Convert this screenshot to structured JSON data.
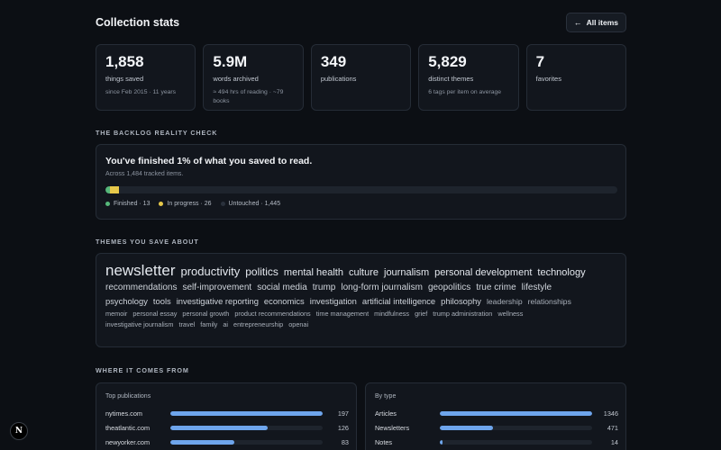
{
  "header": {
    "title": "Collection stats",
    "all_items_label": "All items",
    "back_icon": "arrow-left-icon"
  },
  "stats": [
    {
      "value": "1,858",
      "label": "things saved",
      "sub": "since Feb 2015 · 11 years"
    },
    {
      "value": "5.9M",
      "label": "words archived",
      "sub": "≈ 494 hrs of reading · ~79 books"
    },
    {
      "value": "349",
      "label": "publications",
      "sub": ""
    },
    {
      "value": "5,829",
      "label": "distinct themes",
      "sub": "6 tags per item on average"
    },
    {
      "value": "7",
      "label": "favorites",
      "sub": ""
    }
  ],
  "backlog": {
    "heading": "THE BACKLOG REALITY CHECK",
    "title": "You've finished 1% of what you saved to read.",
    "subtitle": "Across 1,484 tracked items.",
    "total": 1484,
    "finished": 13,
    "in_progress": 26,
    "untouched": 1445,
    "legend": {
      "finished": "Finished · 13",
      "in_progress": "In progress · 26",
      "untouched": "Untouched · 1,445"
    },
    "colors": {
      "finished": "#56b87a",
      "in_progress": "#e6c84a",
      "untouched": "#2a313c"
    }
  },
  "themes": {
    "heading": "THEMES YOU SAVE ABOUT",
    "rows": [
      [
        {
          "text": "newsletter",
          "weight": 5
        },
        {
          "text": "productivity",
          "weight": 4
        },
        {
          "text": "politics",
          "weight": 3.5
        },
        {
          "text": "mental health",
          "weight": 3
        },
        {
          "text": "culture",
          "weight": 3
        },
        {
          "text": "journalism",
          "weight": 3
        },
        {
          "text": "personal development",
          "weight": 3
        },
        {
          "text": "technology",
          "weight": 3
        }
      ],
      [
        {
          "text": "recommendations",
          "weight": 2.5
        },
        {
          "text": "self-improvement",
          "weight": 2.5
        },
        {
          "text": "social media",
          "weight": 2.5
        },
        {
          "text": "trump",
          "weight": 2.5
        },
        {
          "text": "long-form journalism",
          "weight": 2.5
        },
        {
          "text": "geopolitics",
          "weight": 2.5
        },
        {
          "text": "true crime",
          "weight": 2.5
        },
        {
          "text": "lifestyle",
          "weight": 2.5
        }
      ],
      [
        {
          "text": "psychology",
          "weight": 2
        },
        {
          "text": "tools",
          "weight": 2
        },
        {
          "text": "investigative reporting",
          "weight": 2
        },
        {
          "text": "economics",
          "weight": 2
        },
        {
          "text": "investigation",
          "weight": 2
        },
        {
          "text": "artificial intelligence",
          "weight": 2
        },
        {
          "text": "philosophy",
          "weight": 2
        },
        {
          "text": "leadership",
          "weight": 1.5
        },
        {
          "text": "relationships",
          "weight": 1.5
        }
      ],
      [
        {
          "text": "memoir",
          "weight": 1
        },
        {
          "text": "personal essay",
          "weight": 1
        },
        {
          "text": "personal growth",
          "weight": 1
        },
        {
          "text": "product recommendations",
          "weight": 1
        },
        {
          "text": "time management",
          "weight": 1
        },
        {
          "text": "mindfulness",
          "weight": 1
        },
        {
          "text": "grief",
          "weight": 1
        },
        {
          "text": "trump administration",
          "weight": 1
        },
        {
          "text": "wellness",
          "weight": 1
        }
      ],
      [
        {
          "text": "investigative journalism",
          "weight": 1
        },
        {
          "text": "travel",
          "weight": 1
        },
        {
          "text": "family",
          "weight": 1
        },
        {
          "text": "ai",
          "weight": 1
        },
        {
          "text": "entrepreneurship",
          "weight": 1
        },
        {
          "text": "openai",
          "weight": 1
        }
      ]
    ]
  },
  "sources": {
    "heading": "WHERE IT COMES FROM",
    "publications": {
      "title": "Top publications",
      "max": 197,
      "items": [
        {
          "label": "nytimes.com",
          "value": 197
        },
        {
          "label": "theatlantic.com",
          "value": 126
        },
        {
          "label": "newyorker.com",
          "value": 83
        }
      ]
    },
    "types": {
      "title": "By type",
      "max": 1346,
      "items": [
        {
          "label": "Articles",
          "value": 1346
        },
        {
          "label": "Newsletters",
          "value": 471
        },
        {
          "label": "Notes",
          "value": 14
        }
      ]
    },
    "bar_color": "#6ea5ec"
  },
  "badge": {
    "letter": "N"
  }
}
